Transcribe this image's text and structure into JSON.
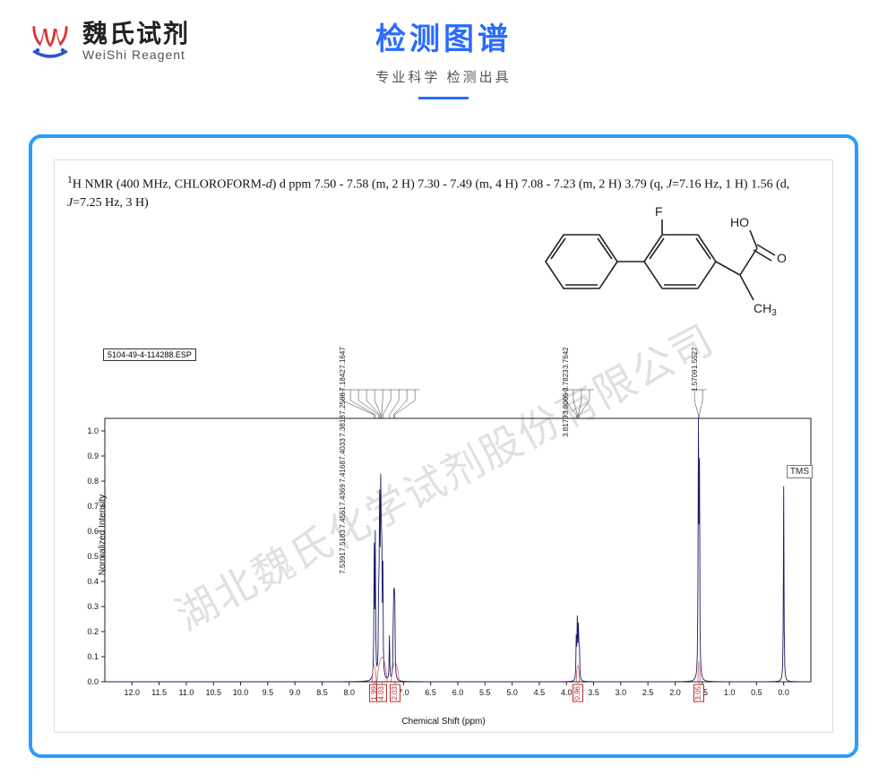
{
  "logo": {
    "cn": "魏氏试剂",
    "en": "WeiShi Reagent",
    "red": "#d93434",
    "blue": "#2957cc"
  },
  "header": {
    "title": "检测图谱",
    "subtitle": "专业科学  检测出具",
    "title_color": "#2a6cff"
  },
  "watermark": "湖北魏氏化学试剂股份有限公司",
  "interpretation": {
    "prefix_sup": "1",
    "line1": "H NMR (400 MHz, CHLOROFORM-",
    "italic_d": "d",
    "line1b": ") d ppm 7.50 - 7.58 (m, 2 H) 7.30 - 7.49 (m, 4 H) 7.08 - 7.23 (m, 2 H) 3.79 (q,  ",
    "italic_J1": "J",
    "line1c": "=7.16 Hz, 1 H) 1.56 (d, ",
    "italic_J2": "J",
    "line1d": "=7.25 Hz, 3 H)"
  },
  "molecule": {
    "labels": {
      "F": "F",
      "HO": "HO",
      "O": "O",
      "CH3": "CH3"
    },
    "color": "#222222"
  },
  "chart": {
    "file_label": "5104-49-4-114288.ESP",
    "tms_label": "TMS",
    "y_title": "Normalized Intensity",
    "x_title": "Chemical Shift (ppm)",
    "xlim": [
      12.5,
      -0.5
    ],
    "xticks": [
      12.0,
      11.5,
      11.0,
      10.5,
      10.0,
      9.5,
      9.0,
      8.5,
      8.0,
      7.5,
      7.0,
      6.5,
      6.0,
      5.5,
      5.0,
      4.5,
      4.0,
      3.5,
      3.0,
      2.5,
      2.0,
      1.5,
      1.0,
      0.5,
      0
    ],
    "ylim": [
      0.0,
      1.05
    ],
    "yticks": [
      0,
      0.1,
      0.2,
      0.3,
      0.4,
      0.5,
      0.6,
      0.7,
      0.8,
      0.9,
      1.0
    ],
    "baseline_color": "#1b1b6a",
    "integral_curve_color": "#c75555",
    "grid_color": "#e6e6e6",
    "peak_clusters": [
      {
        "center_ppm": 7.45,
        "labels": [
          "7.5391",
          "7.5183",
          "7.4551",
          "7.4369",
          "7.4168",
          "7.4033",
          "7.3818",
          "7.2588",
          "7.1842",
          "7.1647"
        ],
        "lines": [
          {
            "ppm": 7.54,
            "h": 0.5
          },
          {
            "ppm": 7.52,
            "h": 0.55
          },
          {
            "ppm": 7.455,
            "h": 0.48
          },
          {
            "ppm": 7.437,
            "h": 0.78
          },
          {
            "ppm": 7.417,
            "h": 0.82
          },
          {
            "ppm": 7.403,
            "h": 0.52
          },
          {
            "ppm": 7.382,
            "h": 0.46
          },
          {
            "ppm": 7.259,
            "h": 0.18
          },
          {
            "ppm": 7.184,
            "h": 0.42
          },
          {
            "ppm": 7.165,
            "h": 0.52
          }
        ]
      },
      {
        "center_ppm": 3.79,
        "labels": [
          "3.8179",
          "3.8005",
          "3.7823",
          "3.7642"
        ],
        "lines": [
          {
            "ppm": 3.818,
            "h": 0.18
          },
          {
            "ppm": 3.8005,
            "h": 0.22
          },
          {
            "ppm": 3.7823,
            "h": 0.22
          },
          {
            "ppm": 3.7642,
            "h": 0.18
          }
        ]
      },
      {
        "center_ppm": 1.56,
        "labels": [
          "1.5709",
          "1.5527"
        ],
        "lines": [
          {
            "ppm": 1.5709,
            "h": 1.0
          },
          {
            "ppm": 1.5527,
            "h": 0.98
          }
        ]
      },
      {
        "center_ppm": 0.0,
        "labels": [],
        "lines": [
          {
            "ppm": 0.0,
            "h": 0.78
          }
        ]
      }
    ],
    "integrals": [
      {
        "ppm_range": [
          7.58,
          7.5
        ],
        "neg_height": 0.06,
        "value": "1.99"
      },
      {
        "ppm_range": [
          7.49,
          7.3
        ],
        "neg_height": 0.1,
        "value": "4.03"
      },
      {
        "ppm_range": [
          7.23,
          7.08
        ],
        "neg_height": 0.07,
        "value": "2.03"
      },
      {
        "ppm_range": [
          3.82,
          3.76
        ],
        "neg_height": 0.06,
        "value": "0.96"
      },
      {
        "ppm_range": [
          1.58,
          1.54
        ],
        "neg_height": 0.08,
        "value": "3.05"
      }
    ]
  }
}
